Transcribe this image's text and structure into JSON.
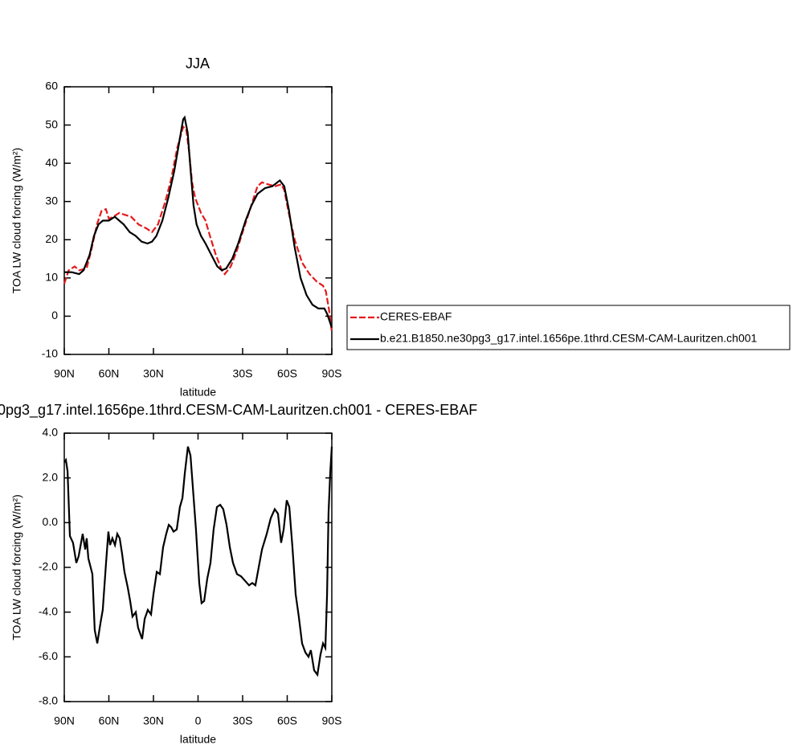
{
  "chart_data": [
    {
      "type": "line",
      "title": "JJA",
      "xlabel": "latitude",
      "ylabel": "TOA LW cloud forcing (W/m²)",
      "xlim": [
        90,
        -90
      ],
      "ylim": [
        -10,
        60
      ],
      "xticks": [
        {
          "value": 90,
          "label": "90N"
        },
        {
          "value": 60,
          "label": "60N"
        },
        {
          "value": 30,
          "label": "30N"
        },
        {
          "value": -30,
          "label": "30S"
        },
        {
          "value": -60,
          "label": "60S"
        },
        {
          "value": -90,
          "label": "90S"
        }
      ],
      "yticks": [
        -10,
        0,
        10,
        20,
        30,
        40,
        50,
        60
      ],
      "legend": "right",
      "series": [
        {
          "name": "CERES-EBAF",
          "color": "#e41a1c",
          "line_style": "dashed",
          "x": [
            90,
            87,
            83,
            80,
            75,
            72,
            68,
            65,
            62,
            60,
            57,
            53,
            49,
            45,
            40,
            35,
            31,
            27,
            22,
            18,
            14,
            10,
            8,
            6,
            4,
            2,
            0,
            -2,
            -5,
            -8,
            -12,
            -16,
            -18,
            -22,
            -26,
            -30,
            -35,
            -40,
            -43,
            -47,
            -52,
            -56,
            -58,
            -61,
            -65,
            -70,
            -75,
            -80,
            -84,
            -86,
            -88,
            -90
          ],
          "values": [
            8.5,
            12,
            13,
            12,
            12.5,
            17,
            24,
            27.5,
            28,
            25.5,
            26,
            27,
            26.5,
            26,
            24,
            23,
            22,
            24,
            30,
            36,
            44,
            49.5,
            49,
            43,
            35,
            31,
            29,
            27,
            25,
            21,
            16,
            12,
            11,
            13,
            17,
            22,
            28,
            34,
            35,
            34.5,
            34,
            34.5,
            33,
            27,
            20,
            14,
            11,
            9,
            8,
            6.5,
            2,
            -4
          ]
        },
        {
          "name": "b.e21.B1850.ne30pg3_g17.intel.1656pe.1thrd.CESM-CAM-Lauritzen.ch001",
          "color": "#000000",
          "line_style": "solid",
          "x": [
            90,
            85,
            80,
            77,
            73,
            70,
            67,
            64,
            60,
            56,
            53,
            50,
            46,
            42,
            38,
            34,
            31,
            28,
            24,
            20,
            16,
            12,
            10,
            9,
            7,
            5,
            3,
            1,
            -2,
            -5,
            -9,
            -13,
            -16,
            -19,
            -23,
            -27,
            -32,
            -36,
            -40,
            -45,
            -50,
            -55,
            -58,
            -61,
            -65,
            -69,
            -73,
            -77,
            -81,
            -85,
            -87,
            -90
          ],
          "values": [
            11.5,
            11.5,
            11,
            12,
            16,
            21,
            24,
            25,
            25,
            26,
            25,
            24,
            22,
            21,
            19.5,
            19,
            19.5,
            21,
            25,
            31,
            38,
            47,
            51.5,
            52,
            48,
            38,
            29,
            24,
            21,
            19,
            16,
            13,
            12,
            12.5,
            15,
            19,
            25,
            29,
            32,
            33.5,
            34,
            35.5,
            34,
            28,
            18,
            10,
            5.5,
            3,
            2,
            2,
            0.5,
            -3
          ]
        }
      ]
    },
    {
      "type": "line",
      "title": "0pg3_g17.intel.1656pe.1thrd.CESM-CAM-Lauritzen.ch001 - CERES-EBAF",
      "xlabel": "latitude",
      "ylabel": "TOA LW cloud forcing (W/m²)",
      "xlim": [
        90,
        -90
      ],
      "ylim": [
        -8,
        4
      ],
      "xticks": [
        {
          "value": 90,
          "label": "90N"
        },
        {
          "value": 60,
          "label": "60N"
        },
        {
          "value": 30,
          "label": "30N"
        },
        0,
        {
          "value": -30,
          "label": "30S"
        },
        {
          "value": -60,
          "label": "60S"
        },
        {
          "value": -90,
          "label": "90S"
        }
      ],
      "yticks": [
        {
          "value": -8,
          "label": "-8.0"
        },
        {
          "value": -6,
          "label": "-6.0"
        },
        {
          "value": -4,
          "label": "-4.0"
        },
        {
          "value": -2,
          "label": "-2.0"
        },
        {
          "value": 0,
          "label": "0.0"
        },
        {
          "value": 2,
          "label": "2.0"
        },
        {
          "value": 4,
          "label": "4.0"
        }
      ],
      "series": [
        {
          "color": "#000000",
          "line_style": "solid",
          "x": [
            90,
            88.9,
            87.8,
            86.2,
            84.1,
            81.9,
            80.3,
            77.6,
            75.9,
            74.9,
            73.8,
            71.1,
            69.5,
            67.8,
            65.7,
            64.1,
            61.9,
            60.3,
            59.2,
            57.6,
            55.9,
            54.3,
            52.7,
            51.1,
            49.5,
            47.3,
            45.7,
            44.1,
            41.9,
            40.3,
            37.6,
            35.9,
            33.8,
            31.6,
            30,
            27.8,
            25.7,
            23.5,
            21.4,
            19.7,
            18.1,
            16.5,
            14.3,
            12.2,
            10.5,
            8.9,
            6.8,
            5.1,
            3.5,
            1.4,
            -0.8,
            -2.4,
            -4.1,
            -6.2,
            -8.4,
            -10.5,
            -12.7,
            -14.9,
            -17,
            -19.2,
            -21.4,
            -23.5,
            -26.2,
            -28.9,
            -31.6,
            -34.3,
            -36.5,
            -38.6,
            -40.8,
            -43,
            -46.2,
            -48.9,
            -51.6,
            -53.8,
            -55.9,
            -57.6,
            -59.7,
            -61.4,
            -63.5,
            -65.7,
            -67.8,
            -70,
            -72.2,
            -74.3,
            -75.9,
            -78.1,
            -80.3,
            -82.4,
            -84.1,
            -85.7,
            -86.8,
            -87.8,
            -88.9,
            -90
          ],
          "values": [
            2.7,
            2.8,
            2.3,
            -0.6,
            -0.9,
            -1.8,
            -1.5,
            -0.5,
            -1.2,
            -0.7,
            -1.6,
            -2.3,
            -4.8,
            -5.4,
            -4.5,
            -3.9,
            -1.8,
            -0.4,
            -1.0,
            -0.7,
            -1.0,
            -0.5,
            -0.7,
            -1.4,
            -2.2,
            -2.9,
            -3.5,
            -4.2,
            -4.0,
            -4.7,
            -5.2,
            -4.3,
            -3.9,
            -4.1,
            -3.2,
            -2.2,
            -2.3,
            -1.1,
            -0.5,
            -0.1,
            -0.2,
            -0.4,
            -0.3,
            0.7,
            1.1,
            2.2,
            3.4,
            3.0,
            1.6,
            -0.3,
            -2.7,
            -3.6,
            -3.5,
            -2.5,
            -1.8,
            -0.3,
            0.7,
            0.8,
            0.6,
            -0.1,
            -1.1,
            -1.8,
            -2.3,
            -2.4,
            -2.6,
            -2.8,
            -2.7,
            -2.8,
            -2.0,
            -1.2,
            -0.5,
            0.2,
            0.6,
            0.4,
            -0.9,
            -0.3,
            1.0,
            0.7,
            -1.1,
            -3.2,
            -4.2,
            -5.4,
            -5.8,
            -6.0,
            -5.7,
            -6.6,
            -6.8,
            -5.9,
            -5.4,
            -5.6,
            -3.2,
            0.4,
            2.2,
            3.4
          ]
        }
      ]
    }
  ]
}
